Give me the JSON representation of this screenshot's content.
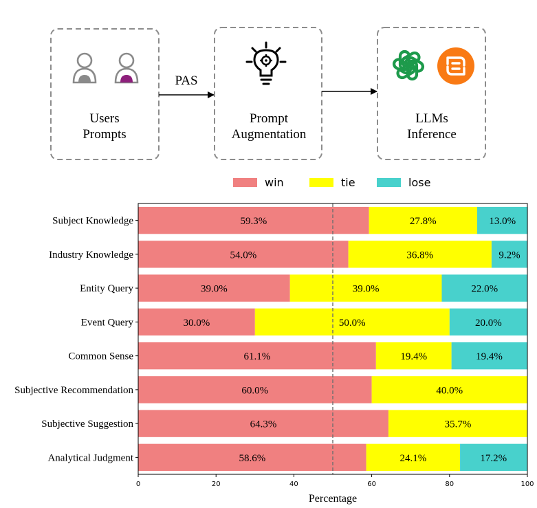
{
  "diagram": {
    "boxes": [
      {
        "id": "users",
        "lines": [
          "Users",
          "Prompts"
        ]
      },
      {
        "id": "augment",
        "lines": [
          "Prompt",
          "Augmentation"
        ]
      },
      {
        "id": "llms",
        "lines": [
          "LLMs",
          "Inference"
        ]
      }
    ],
    "arrow_label": "PAS",
    "icons": [
      "user-icon",
      "user-icon",
      "lightbulb-gear-icon",
      "openai-logo-icon",
      "orange-llm-logo-icon"
    ],
    "colors": {
      "box_border": "#8c8c8c",
      "user_grey": "#8a8a8a",
      "user_purple": "#8e1f7c",
      "openai_green": "#1d9a4b",
      "orange_logo": "#f97a14"
    }
  },
  "chart_data": {
    "type": "bar",
    "orientation": "horizontal",
    "stacked": true,
    "categories": [
      "Subject Knowledge",
      "Industry Knowledge",
      "Entity Query",
      "Event Query",
      "Common Sense",
      "Subjective Recommendation",
      "Subjective Suggestion",
      "Analytical Judgment"
    ],
    "series": [
      {
        "name": "win",
        "color": "#f08080",
        "values": [
          59.3,
          54.0,
          39.0,
          30.0,
          61.1,
          60.0,
          64.3,
          58.6
        ],
        "labels": [
          "59.3%",
          "54.0%",
          "39.0%",
          "30.0%",
          "61.1%",
          "60.0%",
          "64.3%",
          "58.6%"
        ]
      },
      {
        "name": "tie",
        "color": "#ffff00",
        "values": [
          27.8,
          36.8,
          39.0,
          50.0,
          19.4,
          40.0,
          35.7,
          24.1
        ],
        "labels": [
          "27.8%",
          "36.8%",
          "39.0%",
          "50.0%",
          "19.4%",
          "40.0%",
          "35.7%",
          "24.1%"
        ]
      },
      {
        "name": "lose",
        "color": "#48d1cc",
        "values": [
          13.0,
          9.2,
          22.0,
          20.0,
          19.4,
          0.0,
          0.0,
          17.2
        ],
        "labels": [
          "13.0%",
          "9.2%",
          "22.0%",
          "20.0%",
          "19.4%",
          "",
          "",
          "17.2%"
        ]
      }
    ],
    "xlabel": "Percentage",
    "xlim": [
      0,
      100
    ],
    "xticks": [
      0,
      20,
      40,
      60,
      80,
      100
    ],
    "reference_line": 50,
    "legend": "top-center",
    "grid": false
  }
}
